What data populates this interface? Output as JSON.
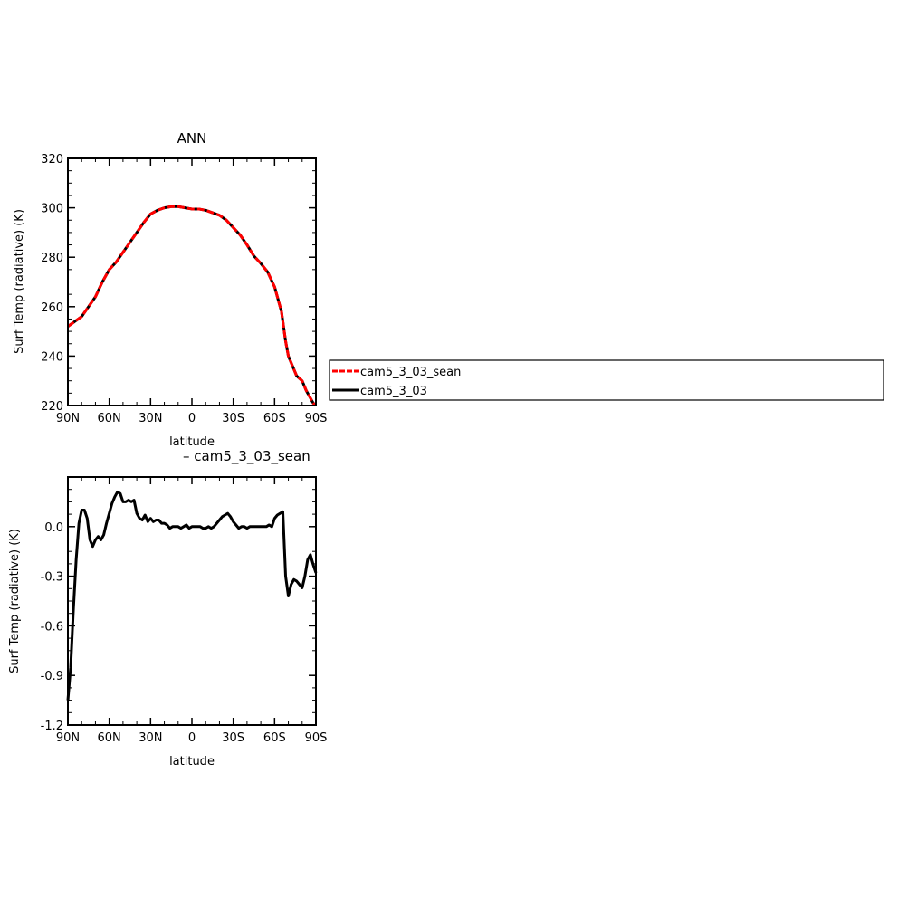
{
  "chart_data": [
    {
      "type": "line",
      "title": "ANN",
      "xlabel": "latitude",
      "ylabel": "Surf Temp (radiative) (K)",
      "x_ticks": [
        "90N",
        "60N",
        "30N",
        "0",
        "30S",
        "60S",
        "90S"
      ],
      "y_ticks": [
        "220",
        "240",
        "260",
        "280",
        "300",
        "320"
      ],
      "xlim": [
        90,
        -90
      ],
      "ylim": [
        220,
        320
      ],
      "legend": "right",
      "series": [
        {
          "name": "cam5_3_03_sean",
          "color": "#ff0000",
          "style": "dashed",
          "x": [
            90,
            85,
            80,
            75,
            70,
            65,
            60,
            55,
            50,
            45,
            40,
            35,
            30,
            25,
            20,
            15,
            10,
            5,
            0,
            -5,
            -10,
            -15,
            -20,
            -25,
            -30,
            -35,
            -40,
            -45,
            -50,
            -55,
            -60,
            -65,
            -68,
            -70,
            -73,
            -76,
            -78,
            -80,
            -83,
            -86,
            -88,
            -90
          ],
          "y": [
            252,
            254,
            256,
            260,
            264,
            270,
            275,
            278,
            282,
            286,
            290,
            294,
            297.5,
            299,
            300,
            300.5,
            300.5,
            300,
            299.5,
            299.5,
            299,
            298,
            297,
            295,
            292,
            289,
            285,
            280.5,
            277.5,
            274,
            268,
            258,
            246,
            240,
            236,
            232,
            231,
            230,
            226,
            223,
            221,
            220
          ]
        },
        {
          "name": "cam5_3_03",
          "color": "#000000",
          "style": "solid",
          "x": [
            90,
            85,
            80,
            75,
            70,
            65,
            60,
            55,
            50,
            45,
            40,
            35,
            30,
            25,
            20,
            15,
            10,
            5,
            0,
            -5,
            -10,
            -15,
            -20,
            -25,
            -30,
            -35,
            -40,
            -45,
            -50,
            -55,
            -60,
            -65,
            -68,
            -70,
            -73,
            -76,
            -78,
            -80,
            -83,
            -86,
            -88,
            -90
          ],
          "y": [
            252,
            254,
            256,
            260,
            264,
            270,
            275,
            278,
            282,
            286,
            290,
            294,
            297.5,
            299,
            300,
            300.5,
            300.5,
            300,
            299.5,
            299.5,
            299,
            298,
            297,
            295,
            292,
            289,
            285,
            280.5,
            277.5,
            274,
            268,
            258,
            246,
            240,
            236,
            232,
            231,
            230,
            226,
            223,
            221,
            220
          ]
        }
      ]
    },
    {
      "type": "line",
      "title": "– cam5_3_03_sean",
      "xlabel": "latitude",
      "ylabel": "Surf Temp (radiative) (K)",
      "x_ticks": [
        "90N",
        "60N",
        "30N",
        "0",
        "30S",
        "60S",
        "90S"
      ],
      "y_ticks": [
        "-1.2",
        "-0.9",
        "-0.6",
        "-0.3",
        "0.0"
      ],
      "y_tick_values": [
        -1.2,
        -0.9,
        -0.6,
        -0.3,
        0.0
      ],
      "xlim": [
        90,
        -90
      ],
      "ylim": [
        -1.2,
        0.3
      ],
      "series": [
        {
          "color": "#000000",
          "x": [
            90,
            88,
            86,
            84,
            82,
            80,
            78,
            76,
            74,
            72,
            70,
            68,
            66,
            64,
            62,
            60,
            58,
            56,
            54,
            52,
            50,
            48,
            46,
            44,
            42,
            40,
            38,
            36,
            34,
            32,
            30,
            28,
            26,
            24,
            22,
            20,
            18,
            16,
            14,
            12,
            10,
            8,
            6,
            4,
            2,
            0,
            -2,
            -4,
            -6,
            -8,
            -10,
            -12,
            -14,
            -16,
            -18,
            -20,
            -22,
            -24,
            -26,
            -28,
            -30,
            -32,
            -34,
            -36,
            -38,
            -40,
            -42,
            -44,
            -46,
            -48,
            -50,
            -52,
            -54,
            -56,
            -58,
            -60,
            -62,
            -64,
            -66,
            -68,
            -70,
            -72,
            -74,
            -76,
            -78,
            -80,
            -82,
            -84,
            -86,
            -88,
            -90
          ],
          "y": [
            -1.05,
            -0.85,
            -0.5,
            -0.2,
            0.02,
            0.1,
            0.1,
            0.05,
            -0.08,
            -0.12,
            -0.08,
            -0.06,
            -0.08,
            -0.05,
            0.02,
            0.08,
            0.14,
            0.18,
            0.21,
            0.2,
            0.15,
            0.15,
            0.16,
            0.15,
            0.16,
            0.08,
            0.05,
            0.04,
            0.07,
            0.03,
            0.05,
            0.03,
            0.04,
            0.04,
            0.02,
            0.02,
            0.01,
            -0.01,
            0.0,
            0.0,
            0.0,
            -0.01,
            0.0,
            0.01,
            -0.01,
            0.0,
            0.0,
            0.0,
            0.0,
            -0.01,
            -0.01,
            0.0,
            -0.01,
            0.0,
            0.02,
            0.04,
            0.06,
            0.07,
            0.08,
            0.06,
            0.03,
            0.01,
            -0.01,
            0.0,
            0.0,
            -0.01,
            0.0,
            0.0,
            0.0,
            0.0,
            0.0,
            0.0,
            0.0,
            0.01,
            0.0,
            0.05,
            0.07,
            0.08,
            0.09,
            -0.3,
            -0.42,
            -0.35,
            -0.32,
            -0.33,
            -0.35,
            -0.37,
            -0.3,
            -0.2,
            -0.17,
            -0.23,
            -0.28
          ]
        }
      ]
    }
  ]
}
